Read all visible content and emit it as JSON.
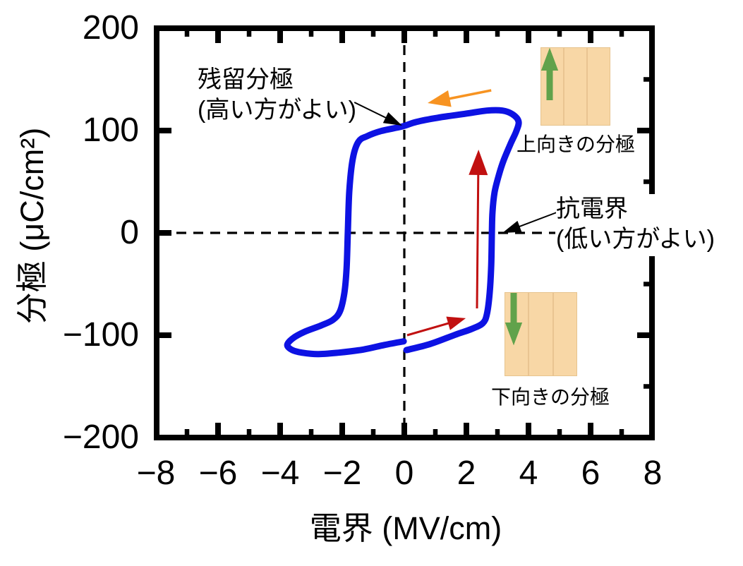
{
  "chart_data": {
    "type": "line",
    "title": "",
    "xlabel": "電界  (MV/cm)",
    "ylabel": "分極 (μC/cm²)",
    "xlim": [
      -8,
      8
    ],
    "ylim": [
      -200,
      200
    ],
    "grid": false,
    "x_major_ticks": [
      -8,
      -6,
      -4,
      -2,
      0,
      2,
      4,
      6,
      8
    ],
    "x_tick_labels": [
      "−8",
      "−6",
      "−4",
      "−2",
      "0",
      "2",
      "4",
      "6",
      "8"
    ],
    "x_minor_ticks": [
      -7,
      -5,
      -3,
      -1,
      1,
      3,
      5,
      7
    ],
    "y_major_ticks": [
      200,
      100,
      0,
      -100,
      -200
    ],
    "y_tick_labels": [
      "200",
      "100",
      "0",
      "−100",
      "−200"
    ],
    "y_minor_ticks_right": [
      150,
      50,
      -50,
      -150
    ],
    "guide_lines": {
      "style": "dashed",
      "vertical_E": 0,
      "horizontal_P": 0
    },
    "series": [
      {
        "name": "hysteresis-loop",
        "color": "#0d12e3",
        "stroke_width": 9,
        "points": [
          [
            0.07,
            -114.5
          ],
          [
            0.84,
            -108.5
          ],
          [
            1.64,
            -99.5
          ],
          [
            2.16,
            -94
          ],
          [
            2.52,
            -88.5
          ],
          [
            2.66,
            -79.5
          ],
          [
            2.75,
            -58.5
          ],
          [
            2.8,
            -31
          ],
          [
            2.82,
            0
          ],
          [
            2.84,
            20.5
          ],
          [
            2.91,
            40
          ],
          [
            3.05,
            57
          ],
          [
            3.2,
            71
          ],
          [
            3.43,
            87.5
          ],
          [
            3.61,
            99.5
          ],
          [
            3.68,
            109
          ],
          [
            3.48,
            116
          ],
          [
            3.16,
            119.5
          ],
          [
            2.66,
            119.5
          ],
          [
            1.98,
            116.5
          ],
          [
            1.07,
            112.5
          ],
          [
            0.39,
            108.5
          ],
          [
            -0.07,
            104
          ],
          [
            -0.75,
            99.5
          ],
          [
            -1.2,
            94.5
          ],
          [
            -1.48,
            89
          ],
          [
            -1.66,
            72.5
          ],
          [
            -1.77,
            41.5
          ],
          [
            -1.82,
            0
          ],
          [
            -1.86,
            -34.5
          ],
          [
            -1.93,
            -58.5
          ],
          [
            -2.07,
            -76.5
          ],
          [
            -2.3,
            -85
          ],
          [
            -2.68,
            -90.5
          ],
          [
            -3.2,
            -96.5
          ],
          [
            -3.59,
            -103
          ],
          [
            -3.77,
            -109.5
          ],
          [
            -3.61,
            -114.5
          ],
          [
            -3.3,
            -117
          ],
          [
            -2.8,
            -118.5
          ],
          [
            -2.11,
            -117
          ],
          [
            -1.32,
            -114
          ],
          [
            -0.64,
            -109.5
          ],
          [
            -0.02,
            -106
          ]
        ]
      }
    ],
    "direction_arrows": [
      {
        "name": "sweep-left-arrow",
        "color": "#f79321",
        "from": [
          2.8,
          139.3
        ],
        "to": [
          0.75,
          126.9
        ],
        "stroke": 3.5,
        "head": [
          32,
          24
        ]
      },
      {
        "name": "switch-up-arrow",
        "color": "#c11010",
        "from": [
          2.34,
          -73.8
        ],
        "to": [
          2.39,
          81.4
        ],
        "stroke": 3,
        "head": [
          36,
          27
        ]
      },
      {
        "name": "sweep-right-arrow",
        "color": "#c11010",
        "from": [
          0.09,
          -100
        ],
        "to": [
          1.98,
          -83.4
        ],
        "stroke": 3,
        "head": [
          26,
          20
        ]
      }
    ],
    "annotation_arrows": [
      {
        "name": "remanent-arrow",
        "color": "#000000",
        "from": [
          -1.61,
          127.6
        ],
        "to": [
          -0.07,
          104.8
        ],
        "stroke": 2,
        "head": [
          26,
          17
        ]
      },
      {
        "name": "coercive-arrow",
        "color": "#000000",
        "from": [
          4.91,
          20
        ],
        "to": [
          3.16,
          0
        ],
        "stroke": 2,
        "head": [
          26,
          17
        ]
      }
    ],
    "key_values": {
      "remanent_polarization": 105,
      "saturation_polarization": 119,
      "coercive_field_positive": 2.8,
      "coercive_field_negative": -1.8,
      "units_P": "μC/cm²",
      "units_E": "MV/cm"
    }
  },
  "annotations": {
    "remanent": {
      "line1": "残留分極",
      "line2": "(高い方がよい)"
    },
    "coercive": {
      "line1": "抗電界",
      "line2": "(低い方がよい)"
    },
    "up_domain_caption": "上向きの分極",
    "down_domain_caption": "下向きの分極"
  },
  "colors": {
    "loop": "#0d12e3",
    "sweep_arrow_orange": "#f79321",
    "switch_arrow_red": "#c11010",
    "domain_box_fill": "#f8d7a6",
    "domain_box_border": "#e6c38e",
    "domain_divider": "#e9c491",
    "domain_arrow_green": "#61a24b",
    "axis": "#000000",
    "background": "#ffffff"
  }
}
